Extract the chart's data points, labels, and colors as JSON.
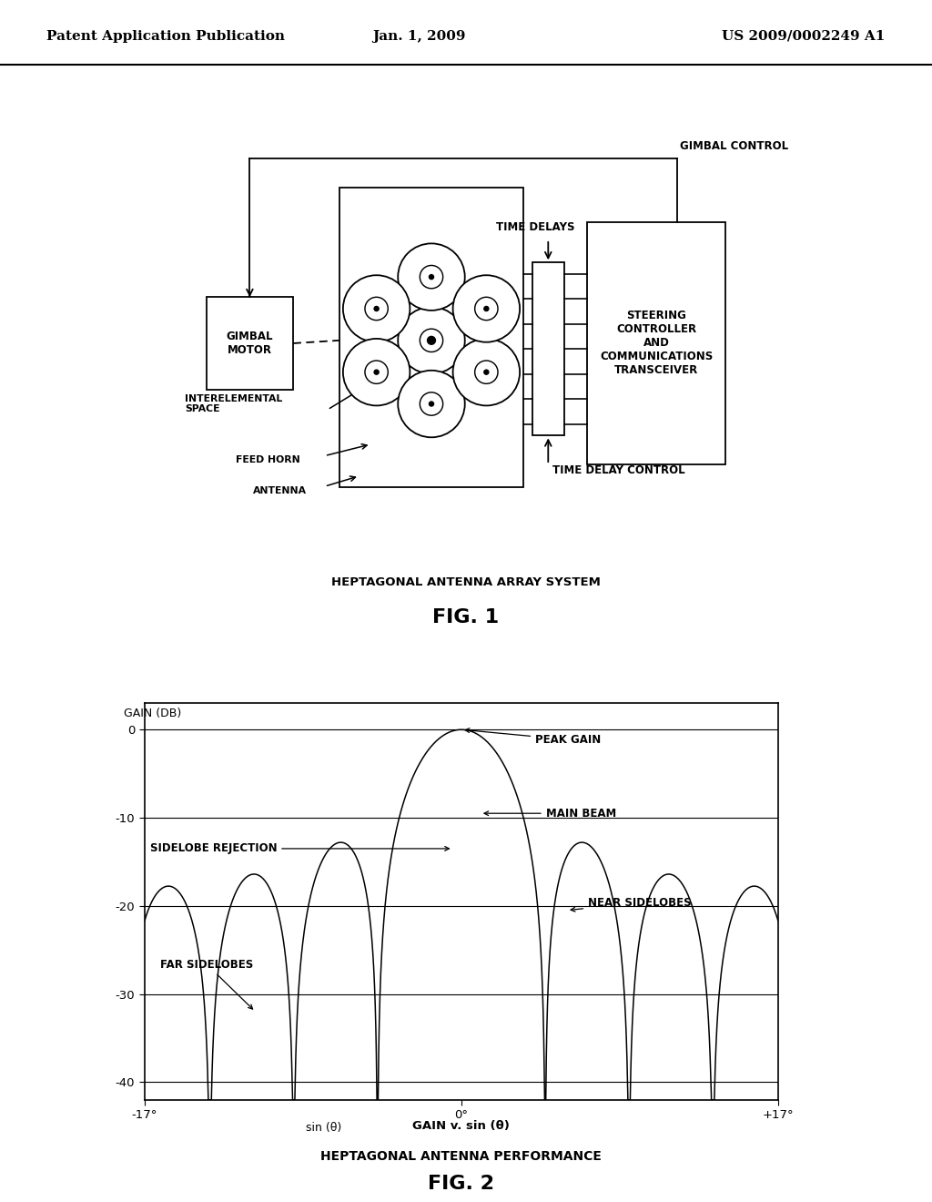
{
  "bg_color": "#ffffff",
  "header_left": "Patent Application Publication",
  "header_center": "Jan. 1, 2009",
  "header_right": "US 2009/0002249 A1",
  "fig1_title": "HEPTAGONAL ANTENNA ARRAY SYSTEM",
  "fig1_label": "FIG. 1",
  "fig2_title": "HEPTAGONAL ANTENNA PERFORMANCE",
  "fig2_label": "FIG. 2",
  "fig2_xlabel": "GAIN v. sin (θ)",
  "fig2_ylabel_label": "GAIN (DB)",
  "fig2_xlabel_axis": "sin (θ)"
}
